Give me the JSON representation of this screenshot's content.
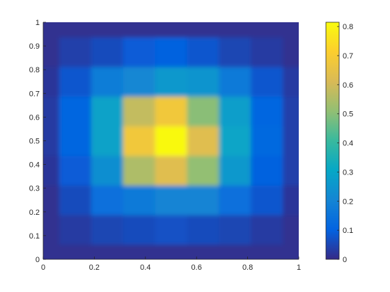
{
  "chart_data": {
    "type": "heatmap",
    "title": "",
    "xlabel": "",
    "ylabel": "",
    "colormap": "parula",
    "color_range": [
      0,
      0.8147
    ],
    "xlim": [
      0,
      1
    ],
    "ylim": [
      0,
      1
    ],
    "grid": false,
    "legend": "none",
    "colorbar": {
      "location": "right",
      "ticks": [
        0,
        0.1,
        0.2,
        0.3,
        0.4,
        0.5,
        0.6,
        0.7,
        0.8
      ],
      "tick_labels": [
        "0",
        "0.1",
        "0.2",
        "0.3",
        "0.4",
        "0.5",
        "0.6",
        "0.7",
        "0.8"
      ]
    },
    "x_ticks": [
      0,
      0.2,
      0.4,
      0.6,
      0.8,
      1
    ],
    "x_tick_labels": [
      "0",
      "0.2",
      "0.4",
      "0.6",
      "0.8",
      "1"
    ],
    "y_ticks": [
      0,
      0.1,
      0.2,
      0.3,
      0.4,
      0.5,
      0.6,
      0.7,
      0.8,
      0.9,
      1
    ],
    "y_tick_labels": [
      "0",
      "0.1",
      "0.2",
      "0.3",
      "0.4",
      "0.5",
      "0.6",
      "0.7",
      "0.8",
      "0.9",
      "1"
    ],
    "x_centers": [
      0,
      0.125,
      0.25,
      0.375,
      0.5,
      0.625,
      0.75,
      0.875,
      1
    ],
    "y_centers": [
      0,
      0.125,
      0.25,
      0.375,
      0.5,
      0.625,
      0.75,
      0.875,
      1
    ],
    "values": [
      [
        0.01,
        0.01,
        0.01,
        0.01,
        0.01,
        0.01,
        0.01,
        0.01,
        0.01
      ],
      [
        0.01,
        0.03,
        0.05,
        0.06,
        0.07,
        0.06,
        0.05,
        0.03,
        0.01
      ],
      [
        0.01,
        0.06,
        0.14,
        0.17,
        0.2,
        0.2,
        0.14,
        0.08,
        0.02
      ],
      [
        0.02,
        0.09,
        0.23,
        0.55,
        0.63,
        0.51,
        0.26,
        0.1,
        0.04
      ],
      [
        0.03,
        0.11,
        0.29,
        0.68,
        0.81,
        0.63,
        0.3,
        0.12,
        0.04
      ],
      [
        0.03,
        0.11,
        0.29,
        0.58,
        0.68,
        0.5,
        0.28,
        0.11,
        0.04
      ],
      [
        0.02,
        0.08,
        0.18,
        0.21,
        0.26,
        0.25,
        0.17,
        0.08,
        0.03
      ],
      [
        0.01,
        0.04,
        0.06,
        0.09,
        0.1,
        0.08,
        0.05,
        0.03,
        0.01
      ],
      [
        0.01,
        0.01,
        0.01,
        0.01,
        0.01,
        0.01,
        0.01,
        0.01,
        0.01
      ]
    ]
  }
}
